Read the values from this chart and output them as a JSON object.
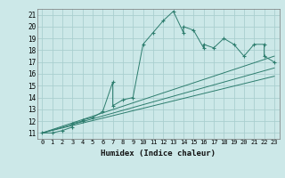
{
  "xlabel": "Humidex (Indice chaleur)",
  "bg_color": "#cce8e8",
  "grid_color": "#aacfcf",
  "line_color": "#2d7d6e",
  "xlim": [
    -0.5,
    23.5
  ],
  "ylim": [
    10.5,
    21.5
  ],
  "yticks": [
    11,
    12,
    13,
    14,
    15,
    16,
    17,
    18,
    19,
    20,
    21
  ],
  "xticks": [
    0,
    1,
    2,
    3,
    4,
    5,
    6,
    7,
    8,
    9,
    10,
    11,
    12,
    13,
    14,
    15,
    16,
    17,
    18,
    19,
    20,
    21,
    22,
    23
  ],
  "xtick_labels": [
    "0",
    "1",
    "2",
    "3",
    "4",
    "5",
    "6",
    "7",
    "8",
    "9",
    "10",
    "11",
    "12",
    "13",
    "14",
    "15",
    "16",
    "17",
    "18",
    "19",
    "20",
    "21",
    "22",
    "23"
  ],
  "series": [
    [
      0,
      11
    ],
    [
      1,
      11
    ],
    [
      2,
      11.2
    ],
    [
      3,
      11.5
    ],
    [
      3,
      11.8
    ],
    [
      4,
      12
    ],
    [
      4,
      12.1
    ],
    [
      5,
      12.3
    ],
    [
      6,
      12.8
    ],
    [
      7,
      15.3
    ],
    [
      7,
      13.3
    ],
    [
      8,
      13.8
    ],
    [
      9,
      14
    ],
    [
      10,
      18.5
    ],
    [
      11,
      19.5
    ],
    [
      12,
      20.5
    ],
    [
      13,
      21.3
    ],
    [
      14,
      19.5
    ],
    [
      14,
      20
    ],
    [
      15,
      19.7
    ],
    [
      16,
      18.2
    ],
    [
      16,
      18.5
    ],
    [
      17,
      18.2
    ],
    [
      18,
      19
    ],
    [
      19,
      18.5
    ],
    [
      20,
      17.5
    ],
    [
      21,
      18.5
    ],
    [
      22,
      18.5
    ],
    [
      22,
      17.5
    ],
    [
      23,
      17
    ]
  ],
  "line1_x": [
    0,
    23
  ],
  "line1_y": [
    11,
    17.5
  ],
  "line2_x": [
    0,
    23
  ],
  "line2_y": [
    11,
    16.5
  ],
  "line3_x": [
    0,
    23
  ],
  "line3_y": [
    11,
    15.8
  ]
}
